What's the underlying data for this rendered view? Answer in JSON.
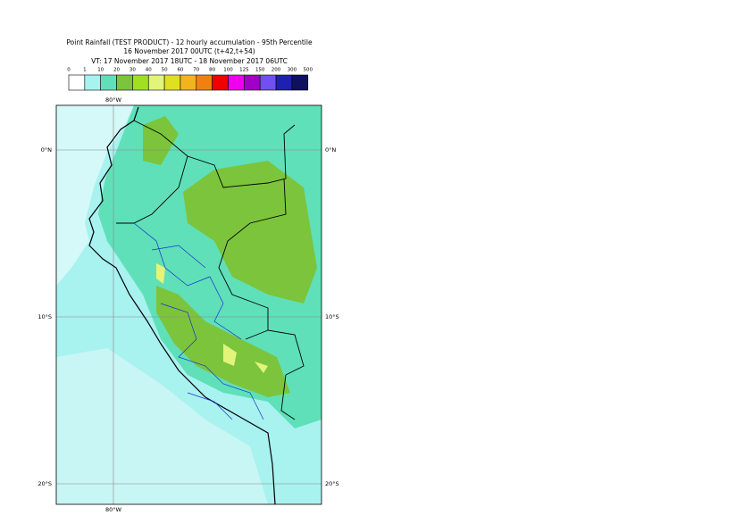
{
  "header": {
    "title": "Point Rainfall (TEST PRODUCT) - 12 hourly accumulation - 95th Percentile",
    "base_time": "16 November 2017 00UTC (t+42,t+54)",
    "valid_time": "VT: 17 November 2017 18UTC - 18 November 2017 06UTC"
  },
  "legend": {
    "labels": [
      "0",
      "1",
      "10",
      "20",
      "30",
      "40",
      "50",
      "60",
      "70",
      "80",
      "100",
      "125",
      "150",
      "200",
      "300",
      "500"
    ],
    "colors": [
      "#ffffff",
      "#a8f2f0",
      "#5fe0b8",
      "#7cc43c",
      "#a0e020",
      "#e2f47a",
      "#e0e020",
      "#f2b41e",
      "#f28010",
      "#f00000",
      "#f000f0",
      "#a000c8",
      "#7050f0",
      "#2020b0",
      "#101060"
    ]
  },
  "map": {
    "lon_labels": [
      "80°W"
    ],
    "lat_labels": [
      "0°N",
      "10°S",
      "20°S"
    ]
  }
}
